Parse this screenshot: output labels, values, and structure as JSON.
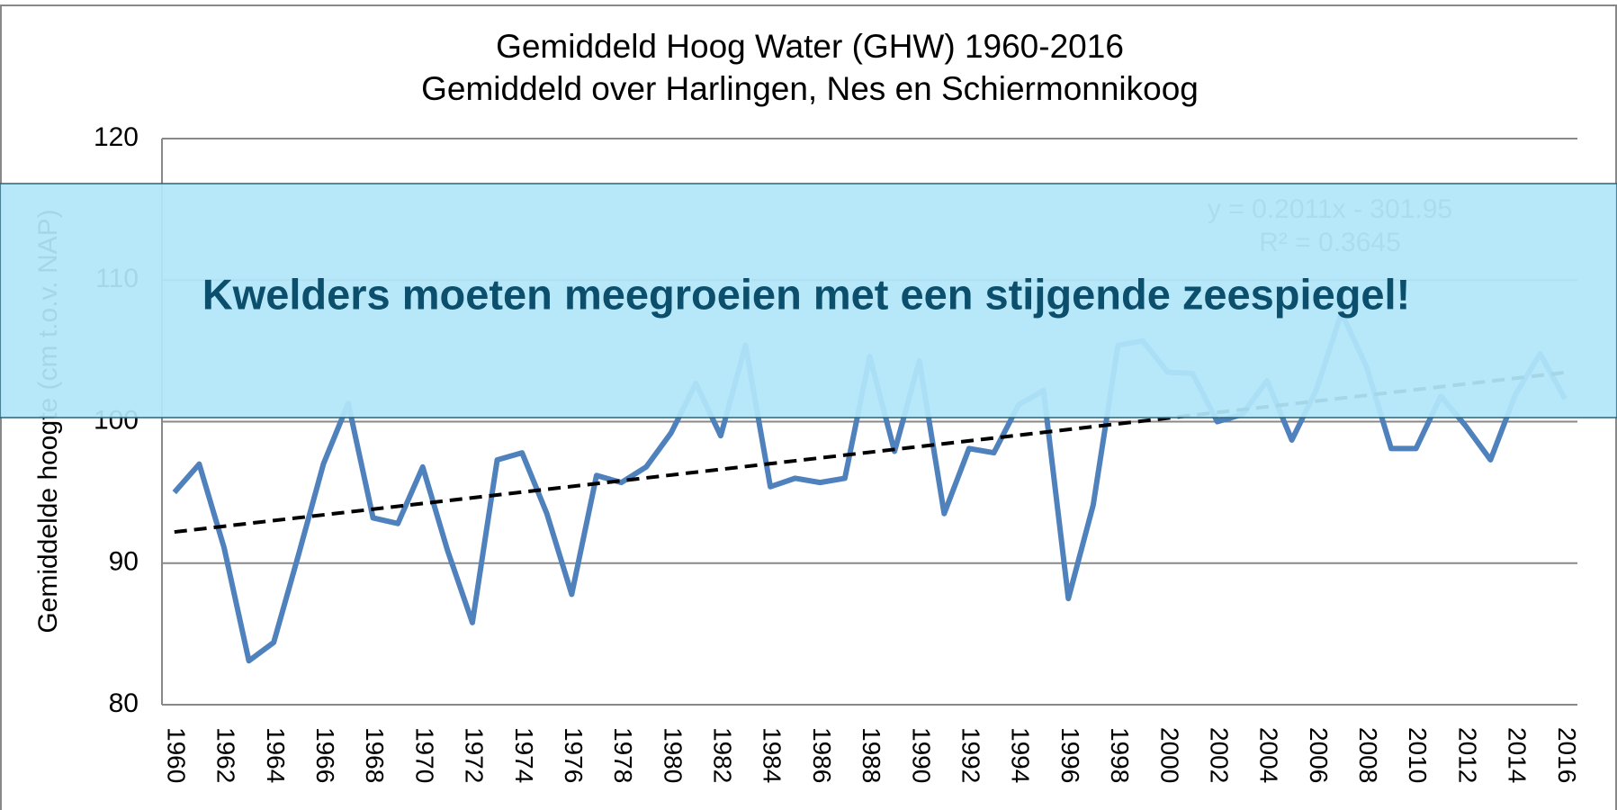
{
  "chart_data": {
    "type": "line",
    "title": "Gemiddeld Hoog Water (GHW) 1960-2016",
    "subtitle": "Gemiddeld over Harlingen,  Nes en Schiermonnikoog",
    "y_label": "Gemiddelde  hoogte (cm t.o.v. NAP)",
    "categories": [
      "1960",
      null,
      "1962",
      null,
      "1964",
      null,
      "1966",
      null,
      "1968",
      null,
      "1970",
      null,
      "1972",
      null,
      "1974",
      null,
      "1976",
      null,
      "1978",
      null,
      "1980",
      null,
      "1982",
      null,
      "1984",
      null,
      "1986",
      null,
      "1988",
      null,
      "1990",
      null,
      "1992",
      null,
      "1994",
      null,
      "1996",
      null,
      "1998",
      null,
      "2000",
      null,
      "2002",
      null,
      "2004",
      null,
      "2006",
      null,
      "2008",
      null,
      "2010",
      null,
      "2012",
      null,
      "2014",
      null,
      "2016"
    ],
    "series": [
      {
        "color": "#4f81bd",
        "values": [
          95.0,
          97.0,
          91.1,
          83.1,
          84.4,
          90.6,
          97.0,
          101.3,
          93.2,
          92.8,
          96.8,
          90.9,
          85.8,
          97.3,
          97.8,
          93.5,
          87.8,
          96.2,
          95.7,
          96.8,
          99.2,
          102.7,
          99.0,
          105.4,
          95.4,
          96.0,
          95.7,
          96.0,
          104.6,
          97.9,
          104.3,
          93.5,
          98.1,
          97.8,
          101.2,
          102.2,
          87.5,
          94.1,
          105.4,
          105.7,
          103.5,
          103.4,
          100.0,
          100.5,
          102.9,
          98.7,
          102.3,
          107.7,
          103.9,
          98.1,
          98.1,
          101.8,
          99.7,
          97.3,
          101.9,
          104.8,
          101.6
        ]
      }
    ],
    "trendline": {
      "equation": "y = 0.2011x  - 301.95",
      "r_squared": "R² = 0.3645",
      "slope": 0.2011,
      "intercept": -301.95,
      "color": "#000000"
    },
    "ylim": [
      80,
      120
    ],
    "yticks": [
      80,
      90,
      100,
      110,
      120
    ],
    "grid": true
  },
  "banner": {
    "text": "Kwelders moeten meegroeien met een stijgende zeespiegel!"
  }
}
